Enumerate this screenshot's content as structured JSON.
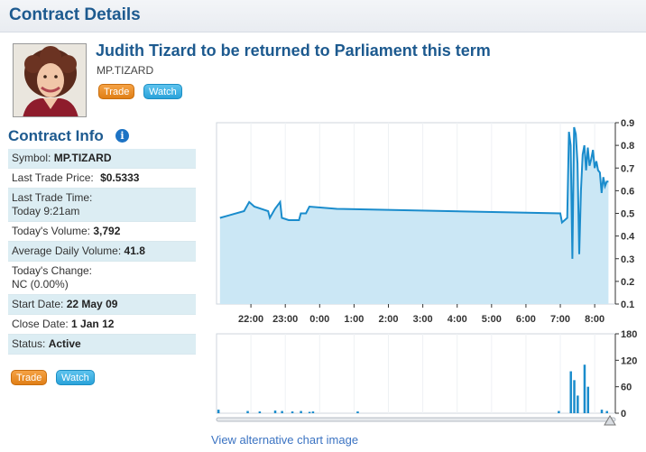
{
  "header": {
    "title": "Contract Details"
  },
  "contract": {
    "title": "Judith Tizard to be returned to Parliament this term",
    "symbol": "MP.TIZARD",
    "trade_label": "Trade",
    "watch_label": "Watch"
  },
  "info": {
    "heading": "Contract Info",
    "rows": [
      {
        "label": "Symbol:",
        "value": "MP.TIZARD"
      },
      {
        "label": "Last Trade Price:",
        "value": "$0.5333"
      },
      {
        "label": "Last Trade Time:",
        "value": "Today 9:21am"
      },
      {
        "label": "Today's Volume:",
        "value": "3,792"
      },
      {
        "label": "Average Daily Volume:",
        "value": "41.8"
      },
      {
        "label": "Today's Change:",
        "value": "NC (0.00%)"
      },
      {
        "label": "Start Date:",
        "value": "22 May 09"
      },
      {
        "label": "Close Date:",
        "value": "1 Jan 12"
      },
      {
        "label": "Status:",
        "value": "Active"
      }
    ],
    "trade_label": "Trade",
    "watch_label": "Watch"
  },
  "links": {
    "alt_chart": "View alternative chart image"
  },
  "colors": {
    "accent": "#1d5a8f",
    "line": "#1a8ccc",
    "fill": "#cbe7f5",
    "trade": "#e88a1e",
    "watch": "#36aee0"
  },
  "chart_data": [
    {
      "type": "area",
      "x_tick_labels": [
        "22:00",
        "23:00",
        "0:00",
        "1:00",
        "2:00",
        "3:00",
        "4:00",
        "5:00",
        "6:00",
        "7:00",
        "8:00"
      ],
      "ylim": [
        0.1,
        0.9
      ],
      "y_ticks": [
        "0.1",
        "0.2",
        "0.3",
        "0.4",
        "0.5",
        "0.6",
        "0.7",
        "0.8",
        "0.9"
      ],
      "points": [
        [
          -0.9,
          0.48
        ],
        [
          -0.2,
          0.51
        ],
        [
          -0.05,
          0.55
        ],
        [
          0.1,
          0.53
        ],
        [
          0.5,
          0.51
        ],
        [
          0.55,
          0.48
        ],
        [
          0.7,
          0.52
        ],
        [
          0.85,
          0.55
        ],
        [
          0.9,
          0.48
        ],
        [
          1.1,
          0.47
        ],
        [
          1.4,
          0.47
        ],
        [
          1.45,
          0.5
        ],
        [
          1.6,
          0.5
        ],
        [
          1.7,
          0.53
        ],
        [
          2.5,
          0.52
        ],
        [
          9.0,
          0.5
        ],
        [
          9.05,
          0.46
        ],
        [
          9.2,
          0.48
        ],
        [
          9.25,
          0.86
        ],
        [
          9.3,
          0.8
        ],
        [
          9.35,
          0.3
        ],
        [
          9.4,
          0.88
        ],
        [
          9.45,
          0.85
        ],
        [
          9.5,
          0.72
        ],
        [
          9.55,
          0.32
        ],
        [
          9.6,
          0.6
        ],
        [
          9.65,
          0.76
        ],
        [
          9.7,
          0.8
        ],
        [
          9.75,
          0.69
        ],
        [
          9.8,
          0.79
        ],
        [
          9.85,
          0.71
        ],
        [
          9.9,
          0.74
        ],
        [
          9.95,
          0.78
        ],
        [
          10.0,
          0.7
        ],
        [
          10.05,
          0.73
        ],
        [
          10.1,
          0.69
        ],
        [
          10.15,
          0.68
        ],
        [
          10.2,
          0.59
        ],
        [
          10.25,
          0.66
        ],
        [
          10.3,
          0.62
        ],
        [
          10.35,
          0.64
        ],
        [
          10.4,
          0.64
        ]
      ]
    },
    {
      "type": "bar",
      "ylim": [
        0,
        180
      ],
      "y_ticks": [
        "0",
        "60",
        "120",
        "180"
      ],
      "bars": [
        [
          -0.95,
          8
        ],
        [
          -0.1,
          5
        ],
        [
          0.25,
          4
        ],
        [
          0.7,
          6
        ],
        [
          0.9,
          5
        ],
        [
          1.2,
          4
        ],
        [
          1.45,
          5
        ],
        [
          1.7,
          3
        ],
        [
          1.8,
          4
        ],
        [
          3.1,
          4
        ],
        [
          8.95,
          5
        ],
        [
          9.3,
          95
        ],
        [
          9.4,
          75
        ],
        [
          9.5,
          40
        ],
        [
          9.7,
          110
        ],
        [
          9.8,
          60
        ],
        [
          10.2,
          8
        ],
        [
          10.35,
          5
        ]
      ]
    }
  ]
}
